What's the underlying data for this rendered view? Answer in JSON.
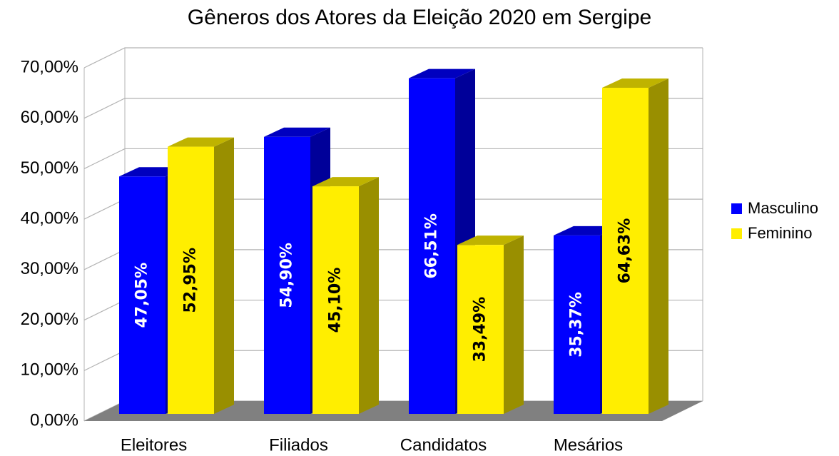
{
  "chart_data": {
    "type": "bar3d",
    "title": "Gêneros dos Atores da Eleição 2020 em Sergipe",
    "categories": [
      "Eleitores",
      "Filiados",
      "Candidatos",
      "Mesários"
    ],
    "series": [
      {
        "name": "Masculino",
        "color": "#0000ff",
        "values": [
          47.05,
          54.9,
          66.51,
          35.37
        ],
        "value_labels": [
          "47,05%",
          "54,90%",
          "66,51%",
          "35,37%"
        ]
      },
      {
        "name": "Feminino",
        "color": "#ffee00",
        "values": [
          52.95,
          45.1,
          33.49,
          64.63
        ],
        "value_labels": [
          "52,95%",
          "45,10%",
          "33,49%",
          "64,63%"
        ]
      }
    ],
    "ylim": [
      0,
      70
    ],
    "yticks": [
      {
        "value": 0,
        "label": "0,00%"
      },
      {
        "value": 10,
        "label": "10,00%"
      },
      {
        "value": 20,
        "label": "20,00%"
      },
      {
        "value": 30,
        "label": "30,00%"
      },
      {
        "value": 40,
        "label": "40,00%"
      },
      {
        "value": 50,
        "label": "50,00%"
      },
      {
        "value": 60,
        "label": "60,00%"
      },
      {
        "value": 70,
        "label": "70,00%"
      }
    ],
    "grid": true,
    "legend": "right"
  }
}
